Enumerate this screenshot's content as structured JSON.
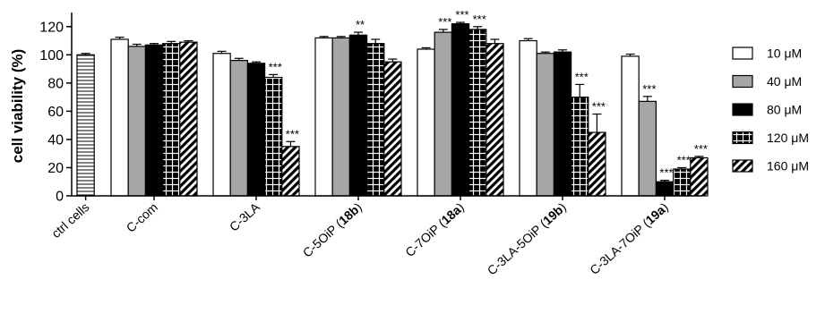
{
  "chart_data": {
    "type": "bar",
    "title": "",
    "xlabel": "",
    "ylabel": "cell viability (%)",
    "ylim": [
      0,
      130
    ],
    "yticks": [
      0,
      20,
      40,
      60,
      80,
      100,
      120
    ],
    "grid": false,
    "legend_position": "right",
    "control": {
      "label": "ctrl cells",
      "value": 100,
      "error": 1
    },
    "categories": [
      {
        "text": "C-com",
        "bold": ""
      },
      {
        "text": "C-3LA",
        "bold": ""
      },
      {
        "text": "C-5OiP (",
        "bold": "18b",
        "suffix": ")"
      },
      {
        "text": "C-7OiP (",
        "bold": "18a",
        "suffix": ")"
      },
      {
        "text": "C-3LA-5OiP (",
        "bold": "19b",
        "suffix": ")"
      },
      {
        "text": "C-3LA-7OiP (",
        "bold": "19a",
        "suffix": ")"
      }
    ],
    "series": [
      {
        "name": "10 μM",
        "fill": "white",
        "values": [
          111,
          101,
          112,
          104,
          110,
          99
        ],
        "errors": [
          1.5,
          1.5,
          1,
          1,
          1.5,
          1.5
        ],
        "sig": [
          "",
          "",
          "",
          "",
          "",
          ""
        ]
      },
      {
        "name": "40 μM",
        "fill": "gray",
        "values": [
          106,
          96,
          112,
          116,
          101,
          67
        ],
        "errors": [
          1.5,
          1.5,
          1,
          2,
          1,
          3.5
        ],
        "sig": [
          "",
          "",
          "",
          "***",
          "",
          "***"
        ]
      },
      {
        "name": "80 μM",
        "fill": "black",
        "values": [
          107,
          94,
          114,
          122,
          102,
          10
        ],
        "errors": [
          1,
          1,
          2,
          1,
          1.5,
          1
        ],
        "sig": [
          "",
          "",
          "**",
          "***",
          "",
          "***"
        ]
      },
      {
        "name": "120 μM",
        "fill": "grid",
        "values": [
          108,
          84,
          108,
          118,
          70,
          19
        ],
        "errors": [
          1.5,
          2,
          3,
          2,
          9,
          1
        ],
        "sig": [
          "",
          "***",
          "",
          "***",
          "***",
          "***"
        ]
      },
      {
        "name": "160 μM",
        "fill": "hatch",
        "values": [
          109,
          35,
          95,
          108,
          45,
          27
        ],
        "errors": [
          1,
          3.5,
          2,
          3,
          13,
          1
        ],
        "sig": [
          "",
          "***",
          "",
          "",
          "***",
          "***"
        ]
      }
    ]
  }
}
